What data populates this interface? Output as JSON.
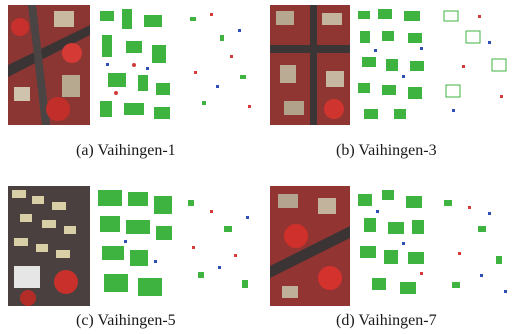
{
  "figure": {
    "panels": [
      {
        "id": "a",
        "caption": "(a)  Vaihingen-1"
      },
      {
        "id": "b",
        "caption": "(b)  Vaihingen-3"
      },
      {
        "id": "c",
        "caption": "(c)  Vaihingen-5"
      },
      {
        "id": "d",
        "caption": "(d)  Vaihingen-7"
      }
    ]
  },
  "colors": {
    "building": "#3fb33f",
    "car": "#2f4fb5",
    "tree": "#d43a3a",
    "aerial_red": "#a8332f",
    "aerial_dark": "#4a4040",
    "aerial_roof": "#d8cfa6"
  }
}
